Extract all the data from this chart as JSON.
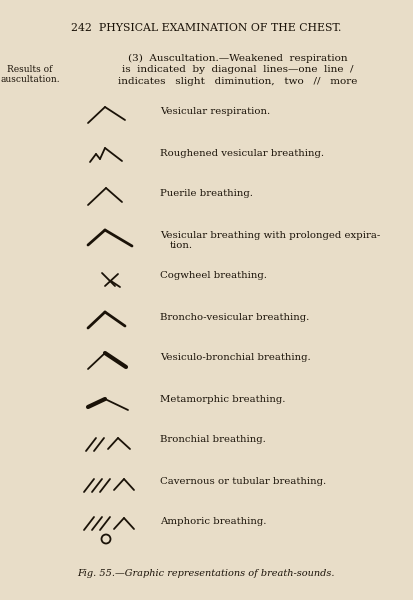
{
  "bg_color": "#e8ddc8",
  "text_color": "#1a1208",
  "title": "242  PHYSICAL EXAMINATION OF THE CHEST.",
  "side_label_line1": "Results of",
  "side_label_line2": "auscultation.",
  "intro_line1": "(3)  Auscultation.—Weakened  respiration",
  "intro_line2": "is  indicated  by  diagonal  lines—one  line  /",
  "intro_line3": "indicates   slight   diminution,   two   //   more",
  "caption": "Fig. 55.—Graphic representations of breath-sounds.",
  "items": [
    {
      "label1": "Vesicular respiration.",
      "label2": "",
      "type": "vesicular"
    },
    {
      "label1": "Roughened vesicular breathing.",
      "label2": "",
      "type": "roughened"
    },
    {
      "label1": "Puerile breathing.",
      "label2": "",
      "type": "puerile"
    },
    {
      "label1": "Vesicular breathing with prolonged expira-",
      "label2": "tion.",
      "type": "prolonged"
    },
    {
      "label1": "Cogwheel breathing.",
      "label2": "",
      "type": "cogwheel"
    },
    {
      "label1": "Broncho-vesicular breathing.",
      "label2": "",
      "type": "broncho"
    },
    {
      "label1": "Vesiculo-bronchial breathing.",
      "label2": "",
      "type": "vesiculo"
    },
    {
      "label1": "Metamorphic breathing.",
      "label2": "",
      "type": "metamorphic"
    },
    {
      "label1": "Bronchial breathing.",
      "label2": "",
      "type": "bronchial"
    },
    {
      "label1": "Cavernous or tubular breathing.",
      "label2": "",
      "type": "cavernous"
    },
    {
      "label1": "Amphoric breathing.",
      "label2": "",
      "type": "amphoric"
    }
  ]
}
